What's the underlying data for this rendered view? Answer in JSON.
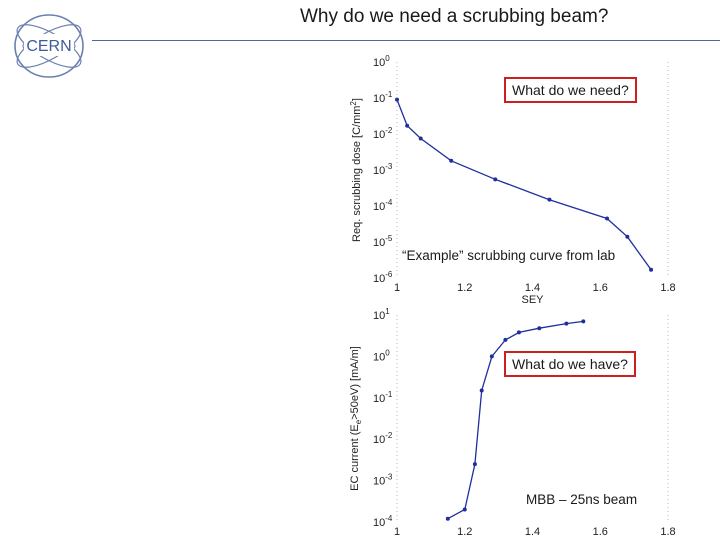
{
  "header": {
    "title": "Why do we need a scrubbing beam?",
    "logo_text": "CERN"
  },
  "colors": {
    "series": "#1f2f9e",
    "callout_border": "#cc2020",
    "rule": "#4a6aa0"
  },
  "callouts": {
    "need": "What do we need?",
    "have": "What do we have?",
    "example_note": "“Example” scrubbing curve from lab",
    "beam_note": "MBB – 25ns beam"
  },
  "chart_data": [
    {
      "type": "line",
      "title": "",
      "xlabel": "SEY",
      "ylabel": "Req. scrubbing dose [C/mm²]",
      "ylabel_parts": [
        "Req. scrubbing dose [C/mm",
        "2",
        "]"
      ],
      "yscale": "log",
      "xlim": [
        1,
        1.8
      ],
      "ylim": [
        1e-06,
        1
      ],
      "xticks": [
        "1",
        "1.2",
        "1.4",
        "1.6",
        "1.8"
      ],
      "yticks": [
        {
          "base": "10",
          "exp": "-6"
        },
        {
          "base": "10",
          "exp": "-5"
        },
        {
          "base": "10",
          "exp": "-4"
        },
        {
          "base": "10",
          "exp": "-3"
        },
        {
          "base": "10",
          "exp": "-2"
        },
        {
          "base": "10",
          "exp": "-1"
        },
        {
          "base": "10",
          "exp": "0"
        }
      ],
      "grid": false,
      "series": [
        {
          "x": [
            1.0,
            1.03,
            1.07,
            1.16,
            1.29,
            1.45,
            1.62,
            1.68,
            1.75
          ],
          "y": [
            0.09,
            0.017,
            0.0075,
            0.0018,
            0.00055,
            0.00015,
            4.5e-05,
            1.4e-05,
            1.7e-06
          ]
        }
      ]
    },
    {
      "type": "line",
      "title": "",
      "xlabel": "",
      "ylabel": "EC current (Ee>50eV) [mA/m]",
      "ylabel_parts": [
        "EC current (E",
        "e",
        ">50eV) [mA/m]"
      ],
      "yscale": "log",
      "xlim": [
        1,
        1.8
      ],
      "ylim": [
        0.0001,
        10
      ],
      "xticks": [
        "1",
        "1.2",
        "1.4",
        "1.6",
        "1.8"
      ],
      "yticks": [
        {
          "base": "10",
          "exp": "-4"
        },
        {
          "base": "10",
          "exp": "-3"
        },
        {
          "base": "10",
          "exp": "-2"
        },
        {
          "base": "10",
          "exp": "-1"
        },
        {
          "base": "10",
          "exp": "0"
        },
        {
          "base": "10",
          "exp": "1"
        }
      ],
      "grid": false,
      "series": [
        {
          "x": [
            1.15,
            1.2,
            1.23,
            1.25,
            1.28,
            1.32,
            1.36,
            1.42,
            1.5,
            1.55
          ],
          "y": [
            0.00012,
            0.0002,
            0.0025,
            0.15,
            1.0,
            2.5,
            3.8,
            4.8,
            6.2,
            7.0
          ]
        }
      ]
    }
  ]
}
